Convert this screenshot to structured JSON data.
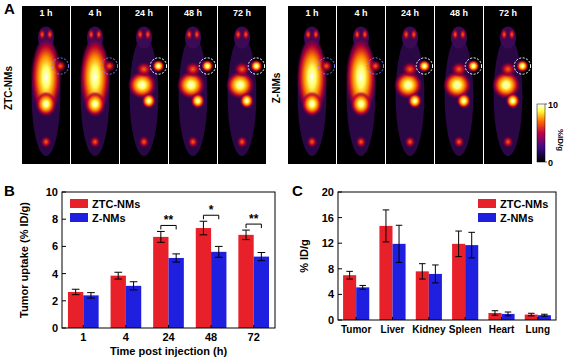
{
  "panel_labels": [
    "A",
    "B",
    "C"
  ],
  "panel_a": {
    "groups": [
      {
        "label": "ZTC-NMs",
        "times": [
          "1 h",
          "4 h",
          "24 h",
          "48 h",
          "72 h"
        ]
      },
      {
        "label": "Z-NMs",
        "times": [
          "1 h",
          "4 h",
          "24 h",
          "48 h",
          "72 h"
        ]
      }
    ],
    "colorbar": {
      "range": [
        0,
        10
      ],
      "ticks": [
        0,
        10
      ],
      "label": "%ID/g"
    }
  },
  "chart_data": [
    {
      "type": "bar",
      "x_label": "Time post injection (h)",
      "y_label": "Tumor uptake (% ID/g)",
      "categories": [
        "1",
        "4",
        "24",
        "48",
        "72"
      ],
      "series": [
        {
          "name": "ZTC-NMs",
          "color": "#e8202a",
          "values": [
            2.65,
            3.85,
            6.7,
            7.35,
            6.85
          ],
          "errors": [
            0.2,
            0.25,
            0.4,
            0.5,
            0.35
          ]
        },
        {
          "name": "Z-NMs",
          "color": "#1f1fe0",
          "values": [
            2.4,
            3.1,
            5.15,
            5.6,
            5.25
          ],
          "errors": [
            0.2,
            0.3,
            0.3,
            0.4,
            0.3
          ]
        }
      ],
      "ylim": [
        0,
        10
      ],
      "yticks": [
        0,
        2,
        4,
        6,
        8,
        10
      ],
      "legend": "upper-left",
      "annotations": [
        {
          "category": "24",
          "label": "**"
        },
        {
          "category": "48",
          "label": "*"
        },
        {
          "category": "72",
          "label": "**"
        }
      ]
    },
    {
      "type": "bar",
      "y_label": "% ID/g",
      "categories": [
        "Tumor",
        "Liver",
        "Kidney",
        "Spleen",
        "Heart",
        "Lung"
      ],
      "series": [
        {
          "name": "ZTC-NMs",
          "color": "#e8202a",
          "values": [
            7.0,
            14.7,
            7.6,
            11.9,
            1.1,
            0.85
          ],
          "errors": [
            0.6,
            2.5,
            1.2,
            2.0,
            0.35,
            0.2
          ]
        },
        {
          "name": "Z-NMs",
          "color": "#1f1fe0",
          "values": [
            5.1,
            11.9,
            7.2,
            11.7,
            0.95,
            0.75
          ],
          "errors": [
            0.3,
            2.9,
            1.4,
            2.0,
            0.3,
            0.15
          ]
        }
      ],
      "ylim": [
        0,
        20
      ],
      "yticks": [
        0,
        4,
        8,
        12,
        16,
        20
      ],
      "legend": "upper-right"
    }
  ]
}
